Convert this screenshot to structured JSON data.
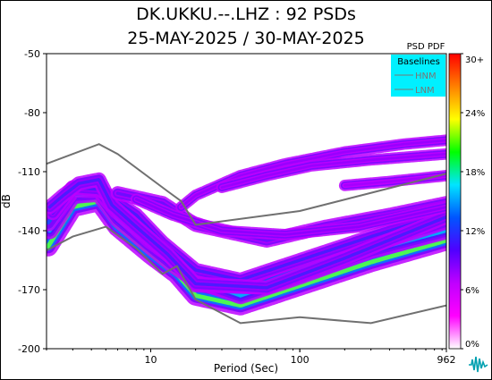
{
  "chart_data": {
    "type": "heatmap",
    "title": "DK.UKKU.--.LHZ : 92 PSDs",
    "subtitle": "25-MAY-2025 / 30-MAY-2025",
    "xlabel": "Period (Sec)",
    "ylabel": "dB",
    "x_scale": "log",
    "xlim": [
      2,
      962
    ],
    "x_ticks": [
      "10",
      "100",
      "962"
    ],
    "ylim": [
      -200,
      -50
    ],
    "y_ticks": [
      "-50",
      "-80",
      "-110",
      "-140",
      "-170",
      "-200"
    ],
    "colorbar": {
      "title": "PSD PDF",
      "labels": [
        "30+",
        "24%",
        "18%",
        "12%",
        "6%",
        "0%"
      ],
      "colors": [
        "#ff0000",
        "#ff8000",
        "#ffff00",
        "#00ff00",
        "#00e5ff",
        "#0055ff",
        "#5000ff",
        "#c000ff",
        "#ff00ff",
        "#ffffff"
      ]
    },
    "legend": {
      "title": "Baselines",
      "entries": [
        "HNM",
        "LNM"
      ],
      "placement": "top-right",
      "background": "#00f0ff"
    },
    "baselines": {
      "HNM": {
        "x": [
          2,
          4.5,
          6,
          13,
          16,
          20,
          100,
          962
        ],
        "y": [
          -106,
          -96,
          -101,
          -120,
          -125,
          -137,
          -130,
          -111
        ]
      },
      "LNM": {
        "x": [
          2,
          3,
          5,
          8,
          12,
          15,
          20,
          40,
          100,
          300,
          962
        ],
        "y": [
          -150,
          -143,
          -138,
          -149,
          -162,
          -158,
          -175,
          -187,
          -184,
          -187,
          -178
        ]
      }
    },
    "pdf_bands": [
      {
        "level": 0.34,
        "width": 7,
        "points": [
          [
            2.05,
            -148
          ],
          [
            3,
            -128
          ],
          [
            4.5,
            -125
          ],
          [
            6,
            -138
          ],
          [
            10,
            -152
          ],
          [
            15,
            -162
          ],
          [
            20,
            -173
          ],
          [
            40,
            -178
          ],
          [
            100,
            -168
          ],
          [
            300,
            -156
          ],
          [
            962,
            -145
          ]
        ]
      },
      {
        "level": 0.22,
        "width": 6,
        "points": [
          [
            2.1,
            -140
          ],
          [
            3,
            -122
          ],
          [
            4.5,
            -121
          ],
          [
            6,
            -134
          ],
          [
            10,
            -148
          ],
          [
            14,
            -157
          ],
          [
            20,
            -165
          ],
          [
            40,
            -173
          ],
          [
            100,
            -163
          ],
          [
            300,
            -150
          ],
          [
            962,
            -140
          ]
        ]
      },
      {
        "level": 0.16,
        "width": 6,
        "points": [
          [
            2.05,
            -136
          ],
          [
            3,
            -119
          ],
          [
            4.5,
            -119
          ],
          [
            6,
            -130
          ],
          [
            10,
            -145
          ],
          [
            15,
            -155
          ],
          [
            20,
            -167
          ],
          [
            50,
            -168
          ],
          [
            100,
            -159
          ],
          [
            300,
            -147
          ],
          [
            962,
            -135
          ]
        ]
      },
      {
        "level": 0.12,
        "width": 5,
        "points": [
          [
            2.2,
            -131
          ],
          [
            3,
            -118
          ],
          [
            4.5,
            -119
          ],
          [
            8,
            -132
          ],
          [
            12,
            -146
          ],
          [
            20,
            -160
          ],
          [
            40,
            -165
          ],
          [
            100,
            -155
          ],
          [
            300,
            -143
          ],
          [
            962,
            -131
          ]
        ]
      },
      {
        "level": 0.12,
        "width": 5,
        "points": [
          [
            2.1,
            -128
          ],
          [
            2.6,
            -122
          ],
          [
            3.3,
            -116
          ],
          [
            4.5,
            -114
          ],
          [
            5.5,
            -127
          ],
          [
            8,
            -138
          ],
          [
            13,
            -152
          ],
          [
            20,
            -167
          ],
          [
            60,
            -169
          ],
          [
            200,
            -154
          ],
          [
            962,
            -133
          ]
        ]
      },
      {
        "level": 0.1,
        "width": 5,
        "points": [
          [
            6,
            -121
          ],
          [
            12,
            -126
          ],
          [
            20,
            -137
          ],
          [
            60,
            -145
          ],
          [
            150,
            -138
          ],
          [
            400,
            -132
          ],
          [
            962,
            -126
          ]
        ]
      },
      {
        "level": 0.08,
        "width": 4,
        "points": [
          [
            8,
            -124
          ],
          [
            14,
            -132
          ],
          [
            30,
            -140
          ],
          [
            80,
            -142
          ],
          [
            250,
            -138
          ],
          [
            962,
            -128
          ]
        ]
      },
      {
        "level": 0.07,
        "width": 4,
        "points": [
          [
            16,
            -128
          ],
          [
            20,
            -122
          ],
          [
            40,
            -112
          ],
          [
            80,
            -106
          ],
          [
            200,
            -100
          ],
          [
            500,
            -96
          ],
          [
            962,
            -94
          ]
        ]
      },
      {
        "level": 0.07,
        "width": 4,
        "points": [
          [
            30,
            -118
          ],
          [
            60,
            -112
          ],
          [
            120,
            -107
          ],
          [
            300,
            -104
          ],
          [
            962,
            -101
          ]
        ]
      },
      {
        "level": 0.06,
        "width": 4,
        "points": [
          [
            200,
            -117
          ],
          [
            400,
            -115
          ],
          [
            962,
            -112
          ]
        ]
      }
    ]
  }
}
